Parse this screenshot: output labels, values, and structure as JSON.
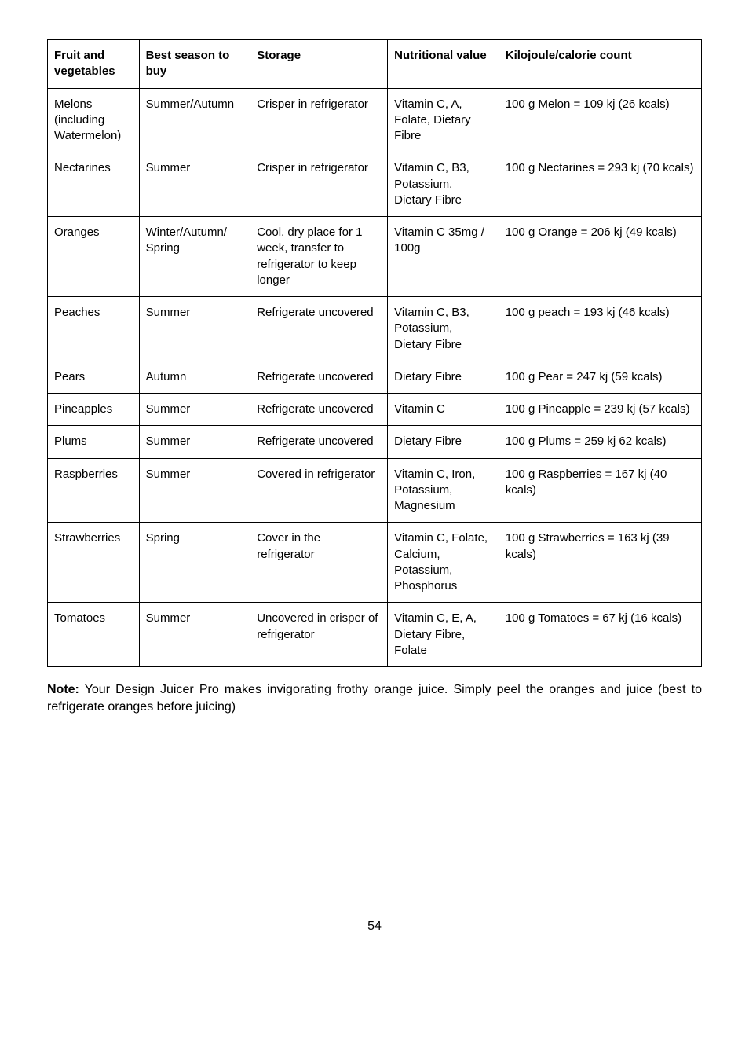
{
  "table": {
    "headers": [
      "Fruit and vegetables",
      "Best season to buy",
      "Storage",
      "Nutritional value",
      "Kilojoule/calorie count"
    ],
    "rows": [
      [
        "Melons (including Watermelon)",
        "Summer/Autumn",
        "Crisper in refrigerator",
        "Vitamin C, A, Folate, Dietary Fibre",
        "100 g Melon = 109 kj (26 kcals)"
      ],
      [
        "Nectarines",
        "Summer",
        "Crisper in refrigerator",
        "Vitamin C, B3, Potassium, Dietary Fibre",
        "100 g Nectarines = 293 kj (70 kcals)"
      ],
      [
        "Oranges",
        "Winter/Autumn/ Spring",
        "Cool, dry place for 1 week, transfer to refrigerator to keep longer",
        "Vitamin C 35mg / 100g",
        "100 g Orange = 206 kj (49 kcals)"
      ],
      [
        "Peaches",
        "Summer",
        "Refrigerate uncovered",
        "Vitamin C, B3, Potassium, Dietary Fibre",
        "100 g peach = 193 kj (46 kcals)"
      ],
      [
        "Pears",
        "Autumn",
        "Refrigerate uncovered",
        "Dietary Fibre",
        "100 g Pear = 247 kj (59 kcals)"
      ],
      [
        "Pineapples",
        "Summer",
        "Refrigerate uncovered",
        "Vitamin C",
        "100 g Pineapple = 239 kj (57 kcals)"
      ],
      [
        "Plums",
        "Summer",
        "Refrigerate uncovered",
        "Dietary Fibre",
        "100 g Plums = 259 kj 62 kcals)"
      ],
      [
        "Raspberries",
        "Summer",
        "Covered in refrigerator",
        "Vitamin C, Iron, Potassium, Magnesium",
        "100 g Raspberries = 167 kj (40 kcals)"
      ],
      [
        "Strawberries",
        "Spring",
        "Cover in the refrigerator",
        "Vitamin C, Folate, Calcium, Potassium, Phosphorus",
        "100 g Strawberries = 163 kj (39 kcals)"
      ],
      [
        "Tomatoes",
        "Summer",
        "Uncovered in crisper of refrigerator",
        "Vitamin C, E, A, Dietary Fibre, Folate",
        "100 g Tomatoes = 67 kj (16 kcals)"
      ]
    ]
  },
  "note": {
    "label": "Note:",
    "text": " Your Design Juicer Pro makes invigorating frothy orange juice. Simply peel the oranges and juice (best to refrigerate oranges before juicing)"
  },
  "page_number": "54"
}
